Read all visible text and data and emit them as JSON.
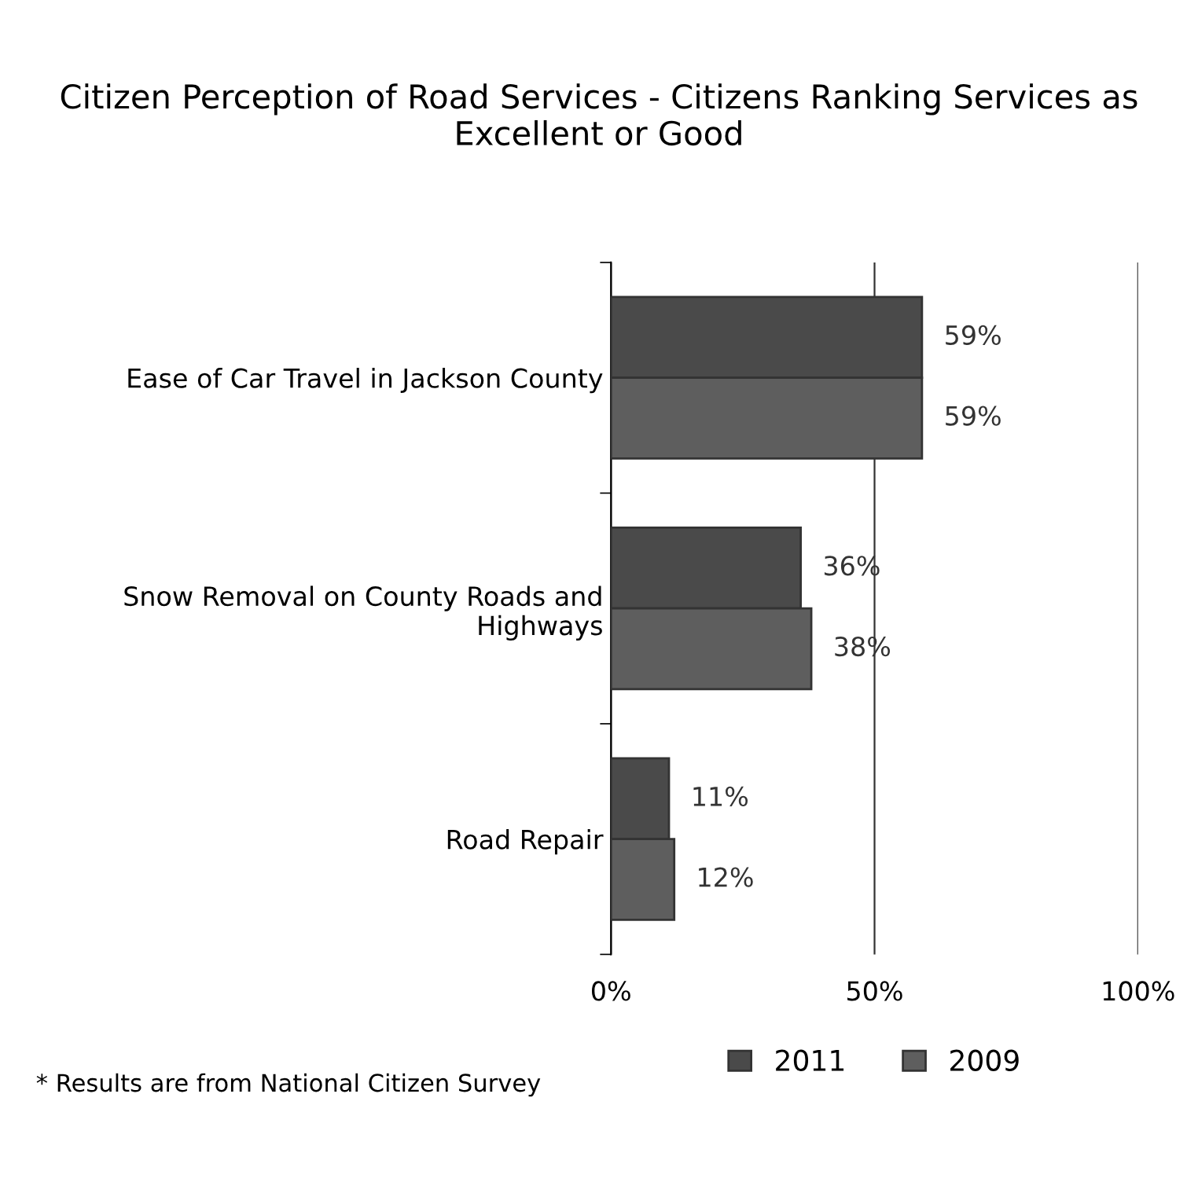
{
  "chart_data": {
    "type": "bar",
    "orientation": "horizontal",
    "title": "Citizen Perception of Road Services - Citizens Ranking Services as Excellent or Good",
    "categories": [
      "Ease of Car Travel in Jackson County",
      "Snow Removal on County Roads and Highways",
      "Road Repair"
    ],
    "series": [
      {
        "name": "2011",
        "color": "#4a4a4a",
        "values": [
          59,
          36,
          11
        ],
        "value_labels": [
          "59%",
          "36%",
          "11%"
        ]
      },
      {
        "name": "2009",
        "color": "#5e5e5e",
        "values": [
          59,
          38,
          12
        ],
        "value_labels": [
          "59%",
          "38%",
          "12%"
        ]
      }
    ],
    "xlim": [
      0,
      100
    ],
    "xticks": [
      {
        "value": 0,
        "label": "0%"
      },
      {
        "value": 50,
        "label": "50%"
      },
      {
        "value": 100,
        "label": "100%"
      }
    ],
    "grid": "x",
    "legend": "bottom",
    "annotations": [
      "* Results are from National Citizen Survey"
    ]
  }
}
